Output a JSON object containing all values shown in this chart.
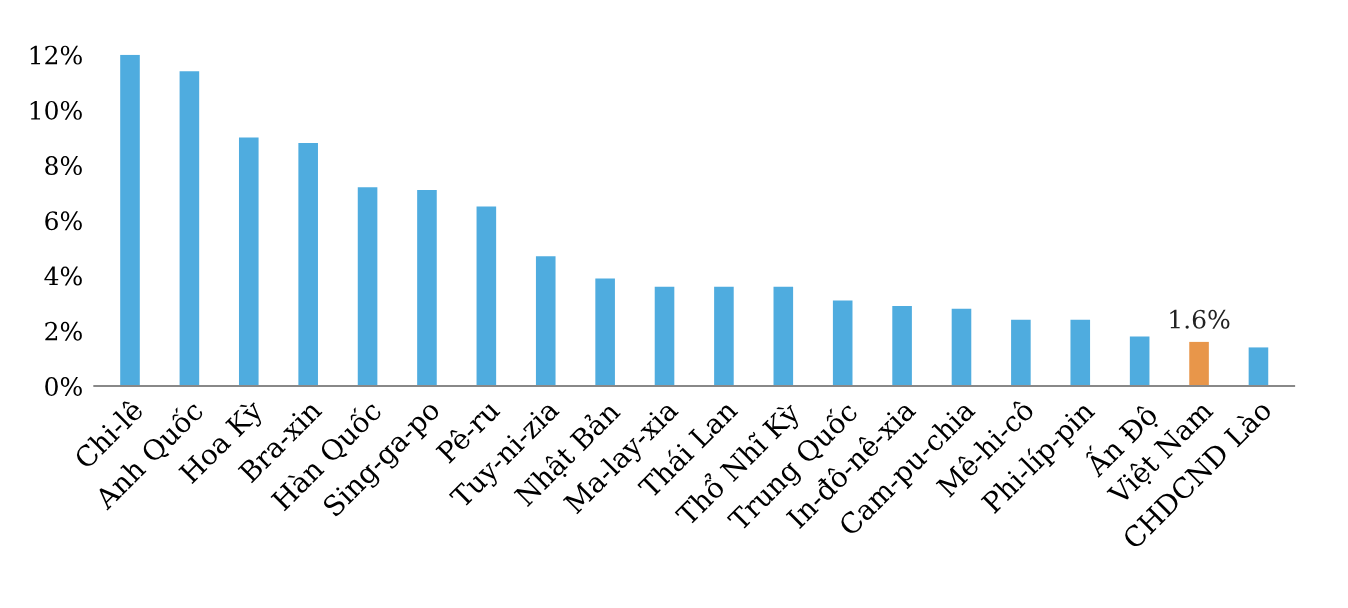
{
  "chart_data": {
    "type": "bar",
    "categories": [
      "Chi-lê",
      "Anh Quốc",
      "Hoa Kỳ",
      "Bra-xin",
      "Hàn Quốc",
      "Sing-ga-po",
      "Pê-ru",
      "Tuy-ni-zia",
      "Nhật Bản",
      "Ma-lay-xia",
      "Thái Lan",
      "Thổ Nhĩ Kỳ",
      "Trung Quốc",
      "In-đô-nê-xia",
      "Cam-pu-chia",
      "Mê-hi-cô",
      "Phi-líp-pin",
      "Ấn Độ",
      "Việt Nam",
      "CHDCND Lào"
    ],
    "values": [
      12.0,
      11.4,
      9.0,
      8.8,
      7.2,
      7.1,
      6.5,
      4.7,
      3.9,
      3.6,
      3.6,
      3.6,
      3.1,
      2.9,
      2.8,
      2.4,
      2.4,
      1.8,
      1.6,
      1.4
    ],
    "colors": [
      "#4facdf",
      "#4facdf",
      "#4facdf",
      "#4facdf",
      "#4facdf",
      "#4facdf",
      "#4facdf",
      "#4facdf",
      "#4facdf",
      "#4facdf",
      "#4facdf",
      "#4facdf",
      "#4facdf",
      "#4facdf",
      "#4facdf",
      "#4facdf",
      "#4facdf",
      "#4facdf",
      "#e8964a",
      "#4facdf"
    ],
    "value_labels": [
      null,
      null,
      null,
      null,
      null,
      null,
      null,
      null,
      null,
      null,
      null,
      null,
      null,
      null,
      null,
      null,
      null,
      null,
      "1.6%",
      null
    ],
    "ylim": [
      0,
      12
    ],
    "yticks": [
      {
        "value": 0,
        "label": "0%"
      },
      {
        "value": 2,
        "label": "2%"
      },
      {
        "value": 4,
        "label": "4%"
      },
      {
        "value": 6,
        "label": "6%"
      },
      {
        "value": 8,
        "label": "8%"
      },
      {
        "value": 10,
        "label": "10%"
      },
      {
        "value": 12,
        "label": "12%"
      }
    ],
    "grid": false,
    "legend": false
  }
}
